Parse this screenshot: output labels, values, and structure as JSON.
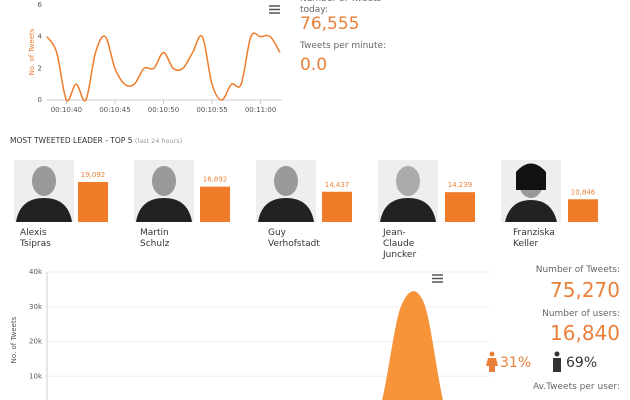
{
  "chart_data": [
    {
      "type": "line",
      "ylabel": "No. of Tweets",
      "color": "#f07c2a",
      "x": [
        "00:10:38",
        "00:10:39",
        "00:10:40",
        "00:10:41",
        "00:10:42",
        "00:10:43",
        "00:10:44",
        "00:10:45",
        "00:10:46",
        "00:10:47",
        "00:10:48",
        "00:10:49",
        "00:10:50",
        "00:10:51",
        "00:10:52",
        "00:10:53",
        "00:10:54",
        "00:10:55",
        "00:10:56",
        "00:10:57",
        "00:10:58",
        "00:10:59",
        "00:11:00",
        "00:11:01",
        "00:11:02"
      ],
      "values": [
        4,
        3,
        0,
        1,
        0,
        3,
        4,
        2,
        1,
        1,
        2,
        2,
        3,
        2,
        2,
        3,
        4,
        1,
        0,
        1,
        1,
        4,
        4,
        4,
        3
      ],
      "xlim": [
        "00:10:38",
        "00:11:02"
      ],
      "xticks": [
        "00:10:40",
        "00:10:45",
        "00:10:50",
        "00:10:55",
        "00:11:00"
      ],
      "ylim": [
        0,
        6
      ],
      "yticks": [
        0,
        2,
        4,
        6
      ]
    },
    {
      "type": "bar",
      "title": "MOST TWEETED LEADER - TOP 5",
      "subtitle": "(last 24 hours)",
      "color": "#f07c2a",
      "categories": [
        "Alexis Tsipras",
        "Martin Schulz",
        "Guy Verhofstadt",
        "Jean-Claude Juncker",
        "Franziska Keller"
      ],
      "values": [
        19092,
        16892,
        14437,
        14239,
        10846
      ],
      "value_labels": [
        "19,092",
        "16,892",
        "14,437",
        "14,239",
        "10,846"
      ]
    },
    {
      "type": "area",
      "ylabel": "No. of Tweets",
      "color": "#f7943a",
      "categories": [
        null,
        null,
        null,
        null,
        null,
        null,
        null,
        null,
        null,
        null,
        null,
        null,
        null,
        null,
        null,
        null,
        null,
        null,
        null,
        null,
        null
      ],
      "values": [
        0,
        0,
        0,
        0,
        0,
        0,
        0,
        0,
        0,
        0,
        0,
        0,
        0,
        0,
        0,
        0,
        30000,
        31000,
        0,
        0,
        0
      ],
      "ylim": [
        0,
        40000
      ],
      "yticks": [
        {
          "value": 10000,
          "label": "10k"
        },
        {
          "value": 20000,
          "label": "20k"
        },
        {
          "value": 30000,
          "label": "30k"
        },
        {
          "value": 40000,
          "label": "40k"
        }
      ]
    }
  ],
  "stats": {
    "tweets_today_label": "Number of Tweets today:",
    "tweets_today": "76,555",
    "per_minute_label": "Tweets per minute:",
    "per_minute": "0.0",
    "tweets_label": "Number of Tweets:",
    "tweets": "75,270",
    "users_label": "Number of users:",
    "users": "16,840",
    "female": "31%",
    "male": "69%",
    "avg_label": "Av.Tweets per user:"
  }
}
